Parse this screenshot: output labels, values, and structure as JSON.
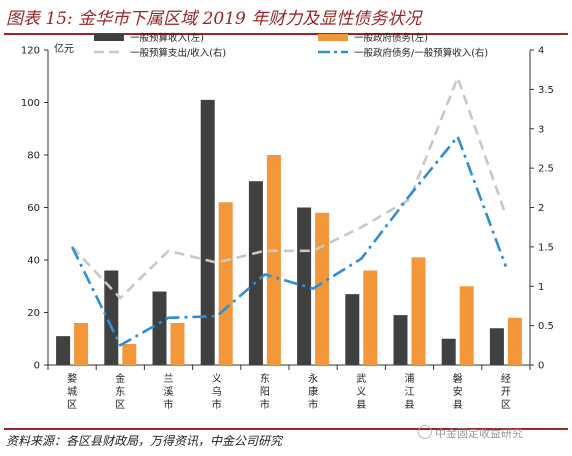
{
  "title": "图表 15: 金华市下属区域 2019 年财力及显性债务状况",
  "source": "资料来源：各区县财政局，万得资讯，中金公司研究",
  "watermark": "中金固定收益研究",
  "colors": {
    "title": "#9b2424",
    "bar_revenue": "#404040",
    "bar_debt": "#f3973b",
    "line_expense_ratio": "#c8c8c8",
    "line_debt_ratio": "#2e8fd6"
  },
  "chart_data": {
    "type": "bar",
    "left_axis_unit": "亿元",
    "categories": [
      "婺城区",
      "金东区",
      "兰溪市",
      "义乌市",
      "东阳市",
      "永康市",
      "武义县",
      "浦江县",
      "磐安县",
      "经开区"
    ],
    "y_left_lim": [
      0,
      120
    ],
    "y_left_ticks": [
      0,
      20,
      40,
      60,
      80,
      100,
      120
    ],
    "y_right_lim": [
      0,
      4
    ],
    "y_right_ticks": [
      "0",
      "0.5",
      "1",
      "1.5",
      "2",
      "2.5",
      "3",
      "3.5",
      "4"
    ],
    "series": [
      {
        "name": "一般预算收入(左)",
        "axis": "left",
        "kind": "bar",
        "color": "#404040",
        "values": [
          11,
          36,
          28,
          101,
          70,
          60,
          27,
          19,
          10,
          14
        ]
      },
      {
        "name": "一般政府债务(左)",
        "axis": "left",
        "kind": "bar",
        "color": "#f3973b",
        "values": [
          16,
          8,
          16,
          62,
          80,
          58,
          36,
          41,
          30,
          18
        ]
      },
      {
        "name": "一般预算支出/收入(右)",
        "axis": "right",
        "kind": "line",
        "dash": "dash",
        "color": "#c8c8c8",
        "values": [
          1.5,
          0.85,
          1.45,
          1.3,
          1.45,
          1.45,
          1.75,
          2.1,
          3.65,
          1.9
        ]
      },
      {
        "name": "一般政府债务/一般预算收入(右)",
        "axis": "right",
        "kind": "line",
        "dash": "dashdot",
        "color": "#2e8fd6",
        "values": [
          1.5,
          0.25,
          0.6,
          0.62,
          1.15,
          0.97,
          1.35,
          2.15,
          2.9,
          1.25
        ]
      }
    ],
    "legend_position": "top",
    "grid": false
  }
}
